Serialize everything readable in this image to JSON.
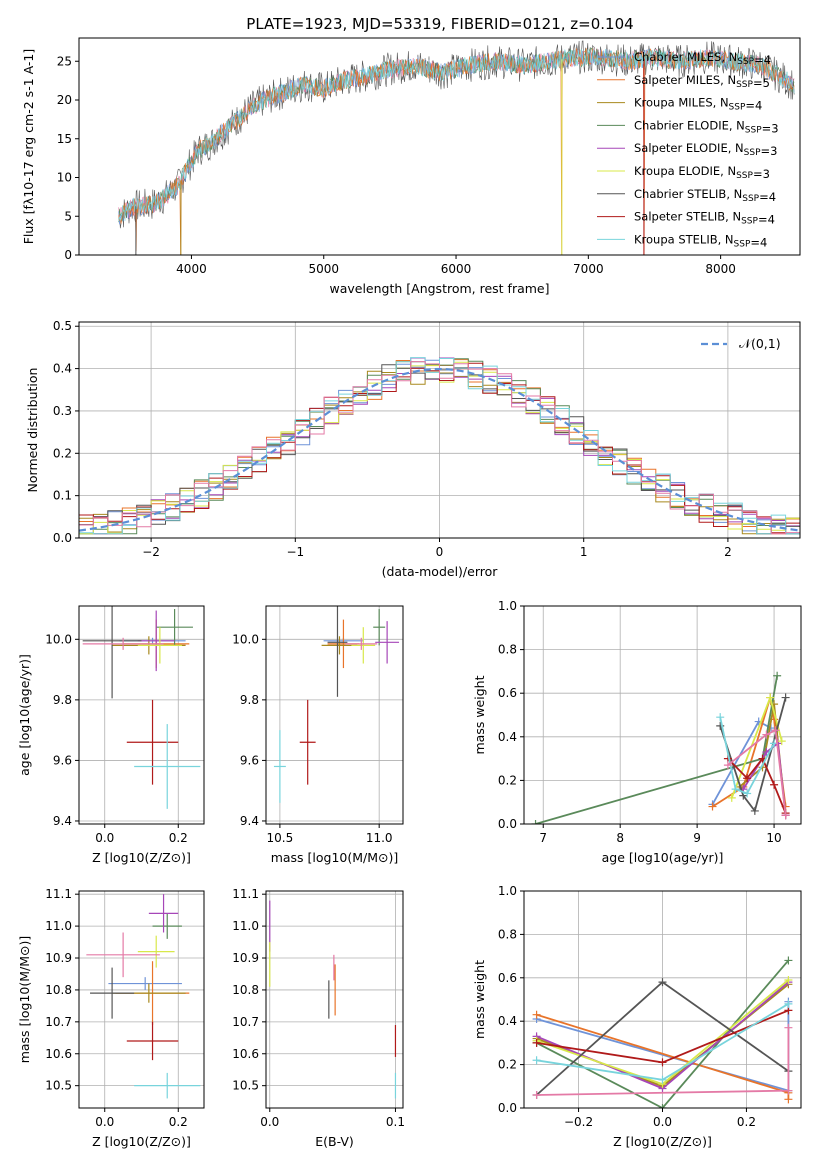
{
  "title": "PLATE=1923, MJD=53319, FIBERID=0121, z=0.104",
  "legend_labels": [
    "Chabrier MILES, N$SSP$=4",
    "Salpeter MILES, N$SSP$=5",
    "Kroupa MILES, N$SSP$=4",
    "Chabrier ELODIE, N$SSP$=3",
    "Salpeter ELODIE, N$SSP$=3",
    "Kroupa ELODIE, N$SSP$=3",
    "Chabrier STELIB, N$SSP$=4",
    "Salpeter STELIB, N$SSP$=4",
    "Kroupa STELIB, N$SSP$=4"
  ],
  "colors": [
    "#6f93d8",
    "#e8742a",
    "#a8891e",
    "#5a8a5a",
    "#a646b8",
    "#d8e84a",
    "#555555",
    "#b01a1a",
    "#78d4dc",
    "#e47aa6"
  ],
  "chart_data": [
    {
      "id": "spectrum",
      "type": "line",
      "title": "PLATE=1923, MJD=53319, FIBERID=0121, z=0.104",
      "xlabel": "wavelength [Angstrom, rest frame]",
      "ylabel": "Flux [f$\\lambda$10$^{-17}$ erg cm$^{-2}$ s$^{-1}$ A$^{-1}$]",
      "xlim": [
        3150,
        8600
      ],
      "ylim": [
        0,
        28
      ],
      "xticks": [
        4000,
        5000,
        6000,
        7000,
        8000
      ],
      "yticks": [
        0,
        5,
        10,
        15,
        20,
        25
      ],
      "grid": false,
      "legend": "right",
      "continuum": [
        [
          3450,
          5.0
        ],
        [
          3550,
          6.2
        ],
        [
          3700,
          6.5
        ],
        [
          3800,
          7.5
        ],
        [
          3900,
          9.0
        ],
        [
          3980,
          11.5
        ],
        [
          4050,
          13.5
        ],
        [
          4150,
          14.5
        ],
        [
          4250,
          16.0
        ],
        [
          4350,
          17.5
        ],
        [
          4450,
          19.0
        ],
        [
          4550,
          20.0
        ],
        [
          4700,
          21.0
        ],
        [
          4850,
          22.0
        ],
        [
          5000,
          21.5
        ],
        [
          5150,
          22.5
        ],
        [
          5300,
          23.0
        ],
        [
          5500,
          24.0
        ],
        [
          5700,
          24.5
        ],
        [
          5900,
          23.5
        ],
        [
          6100,
          24.5
        ],
        [
          6300,
          25.0
        ],
        [
          6500,
          24.5
        ],
        [
          6700,
          25.0
        ],
        [
          6900,
          25.5
        ],
        [
          7100,
          25.5
        ],
        [
          7300,
          25.0
        ],
        [
          7500,
          25.5
        ],
        [
          7700,
          25.0
        ],
        [
          7900,
          25.5
        ],
        [
          8100,
          25.0
        ],
        [
          8300,
          24.5
        ],
        [
          8450,
          23.0
        ],
        [
          8550,
          22.0
        ]
      ],
      "dips": [
        {
          "x": 3580,
          "y": 0.5
        },
        {
          "x": 3920,
          "y": 0.0
        },
        {
          "x": 6800,
          "y": 0.0
        },
        {
          "x": 7420,
          "y": 0.0
        }
      ]
    },
    {
      "id": "residuals",
      "type": "histogram",
      "xlabel": "(data-model)/error",
      "ylabel": "Normed distribution",
      "xlim": [
        -2.5,
        2.5
      ],
      "ylim": [
        0,
        0.51
      ],
      "xticks": [
        -2,
        -1,
        0,
        1,
        2
      ],
      "yticks": [
        0.0,
        0.1,
        0.2,
        0.3,
        0.4,
        0.5
      ],
      "grid": true,
      "legend": "upper right",
      "legend_label": "$\\mathcal{N}(0,1)$",
      "bin_width": 0.1
    },
    {
      "id": "age_Z",
      "type": "errorbar",
      "xlabel": "Z [log$_{10}$(Z/Z$_\\odot$)]",
      "ylabel": "age  [log$_{10}$(age/yr)]",
      "xlim": [
        -0.07,
        0.27
      ],
      "ylim": [
        9.39,
        10.11
      ],
      "xticks": [
        0.0,
        0.2
      ],
      "yticks": [
        9.4,
        9.6,
        9.8,
        10.0
      ],
      "grid": true,
      "points": [
        {
          "s": 0,
          "x": 0.13,
          "y": 9.995,
          "xe": 0.09,
          "ye": 0.01
        },
        {
          "s": 1,
          "x": 0.14,
          "y": 9.985,
          "xe": 0.09,
          "ye": 0.08
        },
        {
          "s": 2,
          "x": 0.12,
          "y": 9.98,
          "xe": 0.1,
          "ye": 0.03
        },
        {
          "s": 3,
          "x": 0.19,
          "y": 10.04,
          "xe": 0.05,
          "ye": 0.06
        },
        {
          "s": 4,
          "x": 0.14,
          "y": 9.995,
          "xe": 0.05,
          "ye": 0.1
        },
        {
          "s": 5,
          "x": 0.15,
          "y": 9.98,
          "xe": 0.06,
          "ye": 0.06
        },
        {
          "s": 6,
          "x": 0.02,
          "y": 9.995,
          "xe": 0.08,
          "ye": 0.19
        },
        {
          "s": 7,
          "x": 0.13,
          "y": 9.66,
          "xe": 0.07,
          "ye": 0.14
        },
        {
          "s": 8,
          "x": 0.17,
          "y": 9.58,
          "xe": 0.09,
          "ye": 0.14
        },
        {
          "s": 9,
          "x": 0.05,
          "y": 9.985,
          "xe": 0.11,
          "ye": 0.02
        }
      ]
    },
    {
      "id": "age_mass",
      "type": "errorbar",
      "xlabel": "mass [log$_{10}$(M/M$_\\odot$)]",
      "ylabel": "",
      "xlim": [
        10.43,
        11.12
      ],
      "ylim": [
        9.39,
        10.11
      ],
      "xticks": [
        10.5,
        11.0
      ],
      "yticks": [
        9.4,
        9.6,
        9.8,
        10.0
      ],
      "grid": true,
      "points": [
        {
          "s": 0,
          "x": 10.82,
          "y": 9.995,
          "xe": 0.1,
          "ye": 0.01
        },
        {
          "s": 1,
          "x": 10.82,
          "y": 9.985,
          "xe": 0.08,
          "ye": 0.08
        },
        {
          "s": 2,
          "x": 10.8,
          "y": 9.98,
          "xe": 0.09,
          "ye": 0.03
        },
        {
          "s": 3,
          "x": 11.0,
          "y": 10.04,
          "xe": 0.03,
          "ye": 0.06
        },
        {
          "s": 4,
          "x": 11.04,
          "y": 9.99,
          "xe": 0.06,
          "ye": 0.07
        },
        {
          "s": 5,
          "x": 10.92,
          "y": 9.98,
          "xe": 0.06,
          "ye": 0.06
        },
        {
          "s": 6,
          "x": 10.79,
          "y": 9.99,
          "xe": 0.05,
          "ye": 0.18
        },
        {
          "s": 7,
          "x": 10.64,
          "y": 9.66,
          "xe": 0.04,
          "ye": 0.14
        },
        {
          "s": 8,
          "x": 10.5,
          "y": 9.58,
          "xe": 0.03,
          "ye": 0.12
        },
        {
          "s": 9,
          "x": 10.91,
          "y": 9.985,
          "xe": 0.08,
          "ye": 0.02
        }
      ]
    },
    {
      "id": "weight_age",
      "type": "line",
      "xlabel": "age  [log$_{10}$(age/yr)]",
      "ylabel": "mass weight",
      "xlim": [
        6.75,
        10.35
      ],
      "ylim": [
        0,
        1.0
      ],
      "xticks": [
        7,
        8,
        9,
        10
      ],
      "yticks": [
        0.0,
        0.2,
        0.4,
        0.6,
        0.8,
        1.0
      ],
      "grid": true,
      "series": [
        {
          "s": 0,
          "points": [
            [
              9.2,
              0.09
            ],
            [
              9.8,
              0.47
            ],
            [
              9.96,
              0.44
            ]
          ]
        },
        {
          "s": 1,
          "points": [
            [
              9.2,
              0.08
            ],
            [
              9.6,
              0.17
            ],
            [
              9.95,
              0.58
            ],
            [
              10.0,
              0.48
            ],
            [
              10.15,
              0.08
            ]
          ]
        },
        {
          "s": 2,
          "points": [
            [
              9.55,
              0.17
            ],
            [
              9.85,
              0.26
            ],
            [
              10.0,
              0.55
            ],
            [
              10.15,
              0.04
            ]
          ]
        },
        {
          "s": 3,
          "points": [
            [
              6.9,
              0.0
            ],
            [
              9.85,
              0.3
            ],
            [
              10.04,
              0.68
            ]
          ]
        },
        {
          "s": 4,
          "points": [
            [
              9.6,
              0.16
            ],
            [
              9.9,
              0.33
            ],
            [
              10.05,
              0.37
            ],
            [
              10.15,
              0.04
            ]
          ]
        },
        {
          "s": 5,
          "points": [
            [
              9.45,
              0.12
            ],
            [
              9.95,
              0.58
            ],
            [
              10.1,
              0.38
            ]
          ]
        },
        {
          "s": 6,
          "points": [
            [
              9.3,
              0.45
            ],
            [
              9.6,
              0.13
            ],
            [
              9.75,
              0.06
            ],
            [
              10.15,
              0.58
            ]
          ]
        },
        {
          "s": 7,
          "points": [
            [
              9.4,
              0.3
            ],
            [
              9.65,
              0.21
            ],
            [
              9.85,
              0.3
            ],
            [
              10.0,
              0.18
            ],
            [
              10.15,
              0.05
            ]
          ]
        },
        {
          "s": 8,
          "points": [
            [
              9.3,
              0.49
            ],
            [
              9.5,
              0.16
            ],
            [
              9.65,
              0.14
            ],
            [
              10.0,
              0.37
            ]
          ]
        },
        {
          "s": 9,
          "points": [
            [
              9.4,
              0.27
            ],
            [
              9.9,
              0.41
            ],
            [
              10.02,
              0.43
            ],
            [
              10.15,
              0.04
            ]
          ]
        }
      ]
    },
    {
      "id": "mass_Z",
      "type": "errorbar",
      "xlabel": "Z [log$_{10}$(Z/Z$_\\odot$)]",
      "ylabel": "mass [log$_{10}$(M/M$_\\odot$)]",
      "xlim": [
        -0.07,
        0.27
      ],
      "ylim": [
        10.43,
        11.11
      ],
      "xticks": [
        0.0,
        0.2
      ],
      "yticks": [
        10.5,
        10.6,
        10.7,
        10.8,
        10.9,
        11.0,
        11.1
      ],
      "grid": true,
      "points": [
        {
          "s": 0,
          "x": 0.11,
          "y": 10.82,
          "xe": 0.1,
          "ye": 0.02
        },
        {
          "s": 1,
          "x": 0.13,
          "y": 10.79,
          "xe": 0.1,
          "ye": 0.1
        },
        {
          "s": 2,
          "x": 0.12,
          "y": 10.79,
          "xe": 0.1,
          "ye": 0.03
        },
        {
          "s": 3,
          "x": 0.17,
          "y": 11.0,
          "xe": 0.04,
          "ye": 0.04
        },
        {
          "s": 4,
          "x": 0.16,
          "y": 11.04,
          "xe": 0.04,
          "ye": 0.06
        },
        {
          "s": 5,
          "x": 0.14,
          "y": 10.92,
          "xe": 0.05,
          "ye": 0.05
        },
        {
          "s": 6,
          "x": 0.02,
          "y": 10.79,
          "xe": 0.06,
          "ye": 0.08
        },
        {
          "s": 7,
          "x": 0.13,
          "y": 10.64,
          "xe": 0.07,
          "ye": 0.06
        },
        {
          "s": 8,
          "x": 0.17,
          "y": 10.5,
          "xe": 0.09,
          "ye": 0.04
        },
        {
          "s": 9,
          "x": 0.05,
          "y": 10.91,
          "xe": 0.1,
          "ye": 0.07
        }
      ]
    },
    {
      "id": "mass_ebv",
      "type": "errorbar",
      "xlabel": "E(B-V)",
      "ylabel": "",
      "xlim": [
        -0.003,
        0.106
      ],
      "ylim": [
        10.43,
        11.11
      ],
      "xticks": [
        0.0,
        0.1
      ],
      "yticks": [
        10.5,
        10.6,
        10.7,
        10.8,
        10.9,
        11.0,
        11.1
      ],
      "grid": true,
      "points": [
        {
          "s": 4,
          "x": 0.0,
          "y": 11.0,
          "xe": 0,
          "ye": 0.08
        },
        {
          "s": 5,
          "x": 0.0,
          "y": 10.88,
          "xe": 0,
          "ye": 0.07
        },
        {
          "s": 6,
          "x": 0.047,
          "y": 10.77,
          "xe": 0,
          "ye": 0.06
        },
        {
          "s": 1,
          "x": 0.052,
          "y": 10.8,
          "xe": 0,
          "ye": 0.08
        },
        {
          "s": 9,
          "x": 0.051,
          "y": 10.87,
          "xe": 0,
          "ye": 0.04
        },
        {
          "s": 7,
          "x": 0.1,
          "y": 10.64,
          "xe": 0,
          "ye": 0.05
        },
        {
          "s": 8,
          "x": 0.1,
          "y": 10.5,
          "xe": 0,
          "ye": 0.04
        }
      ]
    },
    {
      "id": "weight_Z",
      "type": "line",
      "xlabel": "Z [log$_{10}$(Z/Z$_\\odot$)]",
      "ylabel": "mass weight",
      "xlim": [
        -0.33,
        0.33
      ],
      "ylim": [
        0,
        1.0
      ],
      "xticks": [
        -0.2,
        0.0,
        0.2
      ],
      "yticks": [
        0.0,
        0.2,
        0.4,
        0.6,
        0.8,
        1.0
      ],
      "grid": true,
      "series": [
        {
          "s": 0,
          "points": [
            [
              -0.3,
              0.41
            ],
            [
              0.3,
              0.08
            ],
            [
              0.3,
              0.49
            ]
          ]
        },
        {
          "s": 1,
          "points": [
            [
              -0.3,
              0.43
            ],
            [
              0.3,
              0.07
            ],
            [
              0.3,
              0.04
            ]
          ]
        },
        {
          "s": 2,
          "points": [
            [
              -0.3,
              0.32
            ],
            [
              0.0,
              0.1
            ],
            [
              0.3,
              0.57
            ]
          ]
        },
        {
          "s": 3,
          "points": [
            [
              -0.3,
              0.3
            ],
            [
              0.0,
              0.0
            ],
            [
              0.3,
              0.68
            ]
          ]
        },
        {
          "s": 4,
          "points": [
            [
              -0.3,
              0.33
            ],
            [
              0.0,
              0.09
            ],
            [
              0.3,
              0.58
            ]
          ]
        },
        {
          "s": 5,
          "points": [
            [
              -0.3,
              0.31
            ],
            [
              0.0,
              0.11
            ],
            [
              0.3,
              0.59
            ]
          ]
        },
        {
          "s": 6,
          "points": [
            [
              -0.3,
              0.06
            ],
            [
              0.0,
              0.58
            ],
            [
              0.3,
              0.17
            ]
          ]
        },
        {
          "s": 7,
          "points": [
            [
              -0.3,
              0.3
            ],
            [
              0.0,
              0.21
            ],
            [
              0.3,
              0.45
            ]
          ]
        },
        {
          "s": 8,
          "points": [
            [
              -0.3,
              0.22
            ],
            [
              0.0,
              0.13
            ],
            [
              0.3,
              0.48
            ]
          ]
        },
        {
          "s": 9,
          "points": [
            [
              -0.3,
              0.06
            ],
            [
              0.3,
              0.08
            ],
            [
              0.3,
              0.37
            ]
          ]
        }
      ]
    }
  ]
}
